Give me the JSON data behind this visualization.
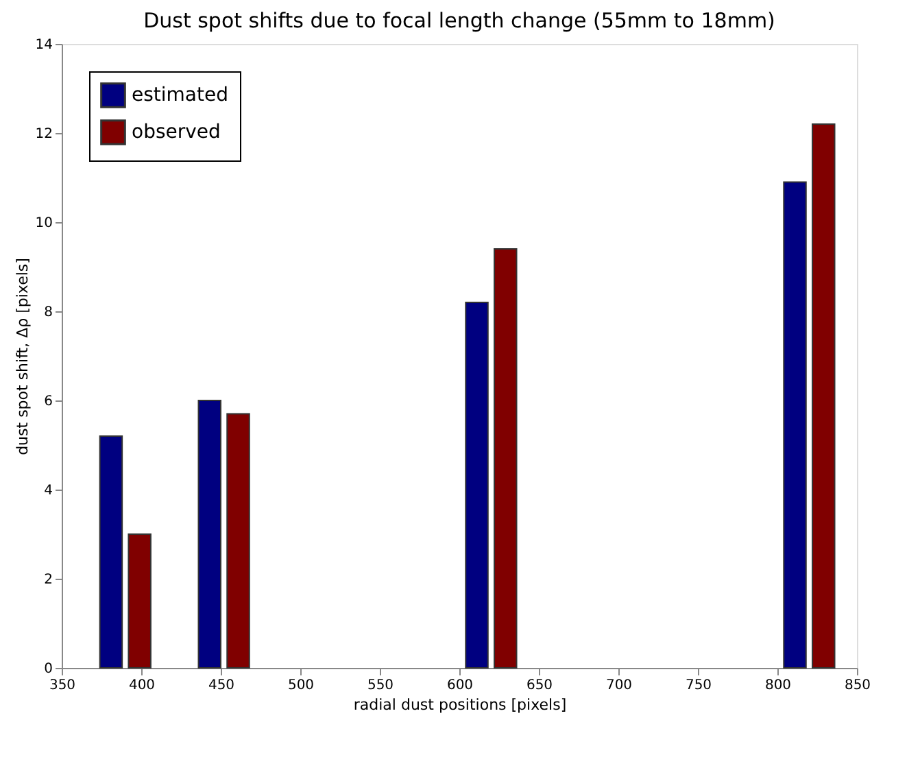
{
  "chart_data": {
    "type": "bar",
    "title": "Dust spot shifts due to focal length change (55mm to 18mm)",
    "xlabel": "radial dust positions [pixels]",
    "ylabel": "dust spot shift, Δρ [pixels]",
    "series": [
      {
        "name": "estimated",
        "color": "#000080",
        "x": [
          381,
          443,
          611,
          811
        ],
        "values": [
          5.2,
          6.0,
          8.2,
          10.9
        ]
      },
      {
        "name": "observed",
        "color": "#800000",
        "x": [
          399,
          461,
          629,
          829
        ],
        "values": [
          3.0,
          5.7,
          9.4,
          12.2
        ]
      }
    ],
    "xlim": [
      350,
      850
    ],
    "xticks": [
      350,
      400,
      450,
      500,
      550,
      600,
      650,
      700,
      750,
      800,
      850
    ],
    "ylim": [
      0,
      14
    ],
    "yticks": [
      0,
      2,
      4,
      6,
      8,
      10,
      12,
      14
    ],
    "grid": false,
    "legend": "top left"
  }
}
